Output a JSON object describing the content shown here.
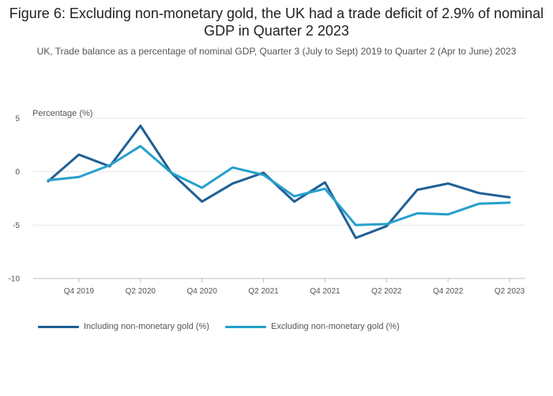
{
  "chart_data": {
    "type": "line",
    "title": "Figure 6: Excluding non-monetary gold, the UK had a trade deficit of 2.9% of nominal GDP in Quarter 2 2023",
    "subtitle": "UK, Trade balance as a percentage of nominal GDP, Quarter 3 (July to Sept) 2019 to Quarter 2 (Apr to June) 2023",
    "ylabel": "Percentage (%)",
    "xlabel": "",
    "ylim": [
      -10,
      5
    ],
    "yticks": [
      5,
      0,
      -5,
      -10
    ],
    "ytick_labels": [
      "5",
      "0",
      "-5",
      "-10"
    ],
    "grid": true,
    "legend_position": "bottom",
    "categories": [
      "Q3 2019",
      "Q4 2019",
      "Q1 2020",
      "Q2 2020",
      "Q3 2020",
      "Q4 2020",
      "Q1 2021",
      "Q2 2021",
      "Q3 2021",
      "Q4 2021",
      "Q1 2022",
      "Q2 2022",
      "Q3 2022",
      "Q4 2022",
      "Q1 2023",
      "Q2 2023"
    ],
    "xtick_labels": [
      {
        "index": 1,
        "label": "Q4 2019"
      },
      {
        "index": 3,
        "label": "Q2 2020"
      },
      {
        "index": 5,
        "label": "Q4 2020"
      },
      {
        "index": 7,
        "label": "Q2 2021"
      },
      {
        "index": 9,
        "label": "Q4 2021"
      },
      {
        "index": 11,
        "label": "Q2 2022"
      },
      {
        "index": 13,
        "label": "Q4 2022"
      },
      {
        "index": 15,
        "label": "Q2 2023"
      }
    ],
    "series": [
      {
        "name": "Including non-monetary gold (%)",
        "color": "#206095",
        "values": [
          -0.9,
          1.6,
          0.5,
          4.3,
          -0.1,
          -2.8,
          -1.1,
          -0.1,
          -2.8,
          -1.0,
          -6.2,
          -5.1,
          -1.7,
          -1.1,
          -2.0,
          -2.4
        ]
      },
      {
        "name": "Excluding non-monetary gold (%)",
        "color": "#27a0cc",
        "values": [
          -0.8,
          -0.5,
          0.6,
          2.4,
          -0.1,
          -1.5,
          0.4,
          -0.3,
          -2.3,
          -1.6,
          -5.0,
          -4.9,
          -3.9,
          -4.0,
          -3.0,
          -2.9
        ]
      }
    ]
  }
}
